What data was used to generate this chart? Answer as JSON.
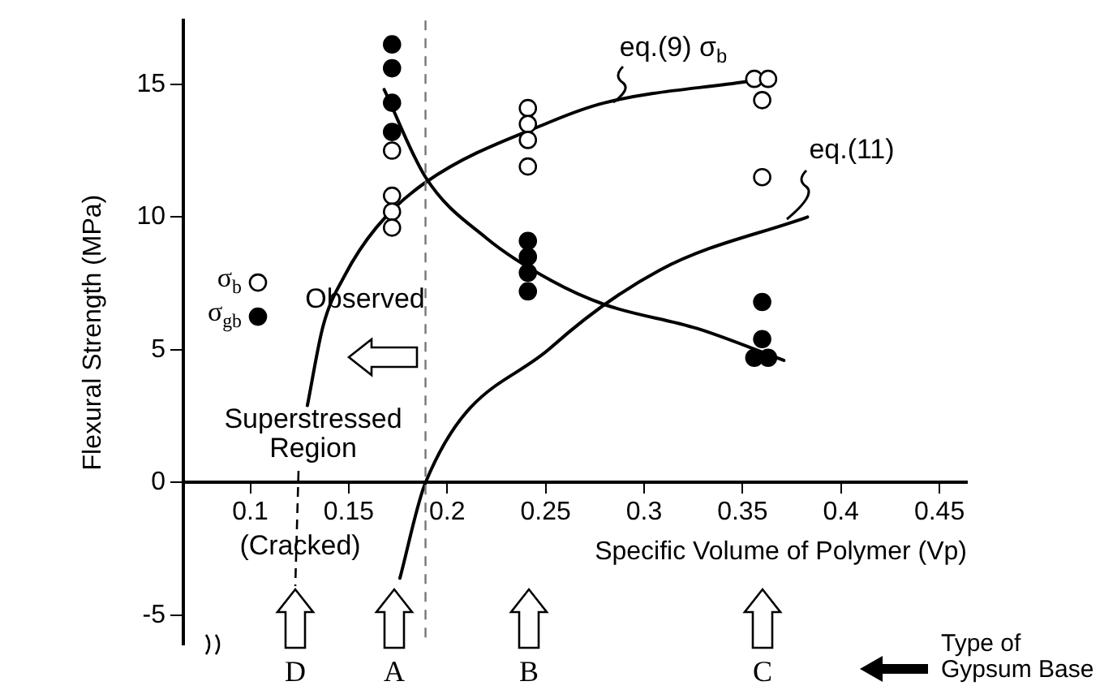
{
  "chart_data": {
    "type": "scatter",
    "xlabel": "Specific Volume of Polymer (Vp)",
    "ylabel": "Flexural Strength (MPa)",
    "xlim": [
      0.066,
      0.464
    ],
    "xticks": [
      0.1,
      0.15,
      0.2,
      0.25,
      0.3,
      0.35,
      0.4,
      0.45
    ],
    "ylim": [
      -6.1,
      17.4
    ],
    "yticks": [
      -5,
      0,
      5,
      10,
      15
    ],
    "legend": "left",
    "marker": "circle",
    "series": [
      {
        "name": "σ$_{b}$",
        "color": "#ffffff",
        "x": [
          0.172,
          0.172,
          0.172,
          0.172,
          0.241,
          0.241,
          0.241,
          0.241,
          0.356,
          0.363,
          0.36,
          0.36
        ],
        "values": [
          12.5,
          10.8,
          10.2,
          9.6,
          14.1,
          13.5,
          12.9,
          11.9,
          15.2,
          15.2,
          14.4,
          11.5
        ]
      },
      {
        "name": "σ$_{gb}$",
        "color": "#000000",
        "x": [
          0.172,
          0.172,
          0.172,
          0.172,
          0.241,
          0.241,
          0.241,
          0.241,
          0.36,
          0.36,
          0.356,
          0.363
        ],
        "values": [
          16.5,
          15.6,
          14.3,
          13.2,
          9.1,
          8.5,
          7.9,
          7.2,
          6.8,
          5.4,
          4.7,
          4.7
        ]
      },
      {
        "type": "line",
        "marker": "none",
        "color": "#000000",
        "x": [
          0.129,
          0.137,
          0.148,
          0.164,
          0.189,
          0.253,
          0.28,
          0.352
        ],
        "values": [
          2.9,
          5.9,
          7.8,
          9.6,
          11.3,
          13.6,
          14.3,
          15.1
        ]
      },
      {
        "type": "line",
        "marker": "none",
        "color": "#000000",
        "x": [
          0.168,
          0.189,
          0.22,
          0.253,
          0.28,
          0.327,
          0.371
        ],
        "values": [
          14.8,
          11.5,
          9.2,
          7.6,
          6.7,
          5.8,
          4.6
        ]
      },
      {
        "type": "line",
        "marker": "none",
        "color": "#000000",
        "x": [
          0.176,
          0.189,
          0.253,
          0.308,
          0.383
        ],
        "values": [
          -3.6,
          0,
          5.1,
          8.0,
          10.0
        ]
      }
    ],
    "ref_lines": [
      {
        "axis": "x",
        "value": 0.189,
        "color": "#777777",
        "line_style": "dashed"
      }
    ],
    "annotations": [
      "eq.(9) σ$_{b}$",
      "eq.(11)",
      "Observed",
      "Superstressed Region",
      "(Cracked)",
      "D",
      "A",
      "B",
      "C",
      "Type of Gypsum Base"
    ]
  }
}
